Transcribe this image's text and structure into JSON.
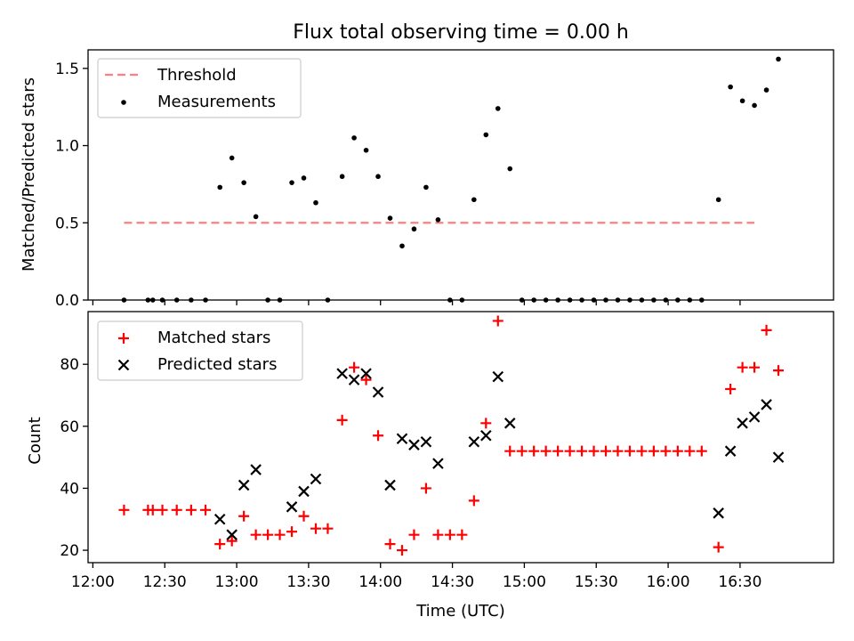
{
  "chart_data": [
    {
      "type": "scatter",
      "title": "Flux total observing time = 0.00 h",
      "ylabel": "Matched/Predicted stars",
      "ylim": [
        0,
        1.62
      ],
      "yticks": [
        0.0,
        0.5,
        1.0,
        1.5
      ],
      "ytick_labels": [
        "0.0",
        "0.5",
        "1.0",
        "1.5"
      ],
      "threshold": {
        "name": "Threshold",
        "x": [
          "12:13",
          "16:36"
        ],
        "y": 0.5,
        "color": "#ff7f7f"
      },
      "series": [
        {
          "name": "Measurements",
          "marker": "dot",
          "color": "#000000",
          "points": [
            [
              "12:13",
              0.0
            ],
            [
              "12:23",
              0.0
            ],
            [
              "12:25",
              0.0
            ],
            [
              "12:29",
              0.0
            ],
            [
              "12:35",
              0.0
            ],
            [
              "12:41",
              0.0
            ],
            [
              "12:47",
              0.0
            ],
            [
              "12:53",
              0.73
            ],
            [
              "12:58",
              0.92
            ],
            [
              "13:03",
              0.76
            ],
            [
              "13:08",
              0.54
            ],
            [
              "13:13",
              0.0
            ],
            [
              "13:18",
              0.0
            ],
            [
              "13:23",
              0.76
            ],
            [
              "13:28",
              0.79
            ],
            [
              "13:33",
              0.63
            ],
            [
              "13:38",
              0.0
            ],
            [
              "13:44",
              0.8
            ],
            [
              "13:49",
              1.05
            ],
            [
              "13:54",
              0.97
            ],
            [
              "13:59",
              0.8
            ],
            [
              "14:04",
              0.53
            ],
            [
              "14:09",
              0.35
            ],
            [
              "14:14",
              0.46
            ],
            [
              "14:19",
              0.73
            ],
            [
              "14:24",
              0.52
            ],
            [
              "14:29",
              0.0
            ],
            [
              "14:34",
              0.0
            ],
            [
              "14:39",
              0.65
            ],
            [
              "14:44",
              1.07
            ],
            [
              "14:49",
              1.24
            ],
            [
              "14:54",
              0.85
            ],
            [
              "14:59",
              0.0
            ],
            [
              "15:04",
              0.0
            ],
            [
              "15:09",
              0.0
            ],
            [
              "15:14",
              0.0
            ],
            [
              "15:19",
              0.0
            ],
            [
              "15:24",
              0.0
            ],
            [
              "15:29",
              0.0
            ],
            [
              "15:34",
              0.0
            ],
            [
              "15:39",
              0.0
            ],
            [
              "15:44",
              0.0
            ],
            [
              "15:49",
              0.0
            ],
            [
              "15:54",
              0.0
            ],
            [
              "15:59",
              0.0
            ],
            [
              "16:04",
              0.0
            ],
            [
              "16:09",
              0.0
            ],
            [
              "16:14",
              0.0
            ],
            [
              "16:21",
              0.65
            ],
            [
              "16:26",
              1.38
            ],
            [
              "16:31",
              1.29
            ],
            [
              "16:36",
              1.26
            ],
            [
              "16:41",
              1.36
            ],
            [
              "16:46",
              1.56
            ]
          ]
        }
      ],
      "legend": "upper-left"
    },
    {
      "type": "scatter",
      "xlabel": "Time (UTC)",
      "ylabel": "Count",
      "ylim": [
        16,
        97
      ],
      "yticks": [
        20,
        40,
        60,
        80
      ],
      "xticks": [
        "12:00",
        "12:30",
        "13:00",
        "13:30",
        "14:00",
        "14:30",
        "15:00",
        "15:30",
        "16:00",
        "16:30"
      ],
      "series": [
        {
          "name": "Matched stars",
          "marker": "plus",
          "color": "#ff0000",
          "points": [
            [
              "12:13",
              33
            ],
            [
              "12:23",
              33
            ],
            [
              "12:25",
              33
            ],
            [
              "12:29",
              33
            ],
            [
              "12:35",
              33
            ],
            [
              "12:41",
              33
            ],
            [
              "12:47",
              33
            ],
            [
              "12:53",
              22
            ],
            [
              "12:58",
              23
            ],
            [
              "13:03",
              31
            ],
            [
              "13:08",
              25
            ],
            [
              "13:13",
              25
            ],
            [
              "13:18",
              25
            ],
            [
              "13:23",
              26
            ],
            [
              "13:28",
              31
            ],
            [
              "13:33",
              27
            ],
            [
              "13:38",
              27
            ],
            [
              "13:44",
              62
            ],
            [
              "13:49",
              79
            ],
            [
              "13:54",
              75
            ],
            [
              "13:59",
              57
            ],
            [
              "14:04",
              22
            ],
            [
              "14:09",
              20
            ],
            [
              "14:14",
              25
            ],
            [
              "14:19",
              40
            ],
            [
              "14:24",
              25
            ],
            [
              "14:29",
              25
            ],
            [
              "14:34",
              25
            ],
            [
              "14:39",
              36
            ],
            [
              "14:44",
              61
            ],
            [
              "14:49",
              94
            ],
            [
              "14:54",
              52
            ],
            [
              "14:59",
              52
            ],
            [
              "15:04",
              52
            ],
            [
              "15:09",
              52
            ],
            [
              "15:14",
              52
            ],
            [
              "15:19",
              52
            ],
            [
              "15:24",
              52
            ],
            [
              "15:29",
              52
            ],
            [
              "15:34",
              52
            ],
            [
              "15:39",
              52
            ],
            [
              "15:44",
              52
            ],
            [
              "15:49",
              52
            ],
            [
              "15:54",
              52
            ],
            [
              "15:59",
              52
            ],
            [
              "16:04",
              52
            ],
            [
              "16:09",
              52
            ],
            [
              "16:14",
              52
            ],
            [
              "16:21",
              21
            ],
            [
              "16:26",
              72
            ],
            [
              "16:31",
              79
            ],
            [
              "16:36",
              79
            ],
            [
              "16:41",
              91
            ],
            [
              "16:46",
              78
            ]
          ]
        },
        {
          "name": "Predicted stars",
          "marker": "x",
          "color": "#000000",
          "points": [
            [
              "12:53",
              30
            ],
            [
              "12:58",
              25
            ],
            [
              "13:03",
              41
            ],
            [
              "13:08",
              46
            ],
            [
              "13:23",
              34
            ],
            [
              "13:28",
              39
            ],
            [
              "13:33",
              43
            ],
            [
              "13:44",
              77
            ],
            [
              "13:49",
              75
            ],
            [
              "13:54",
              77
            ],
            [
              "13:59",
              71
            ],
            [
              "14:04",
              41
            ],
            [
              "14:09",
              56
            ],
            [
              "14:14",
              54
            ],
            [
              "14:19",
              55
            ],
            [
              "14:24",
              48
            ],
            [
              "14:39",
              55
            ],
            [
              "14:44",
              57
            ],
            [
              "14:49",
              76
            ],
            [
              "14:54",
              61
            ],
            [
              "16:21",
              32
            ],
            [
              "16:26",
              52
            ],
            [
              "16:31",
              61
            ],
            [
              "16:36",
              63
            ],
            [
              "16:41",
              67
            ],
            [
              "16:46",
              50
            ]
          ]
        }
      ],
      "legend": "upper-left"
    }
  ]
}
